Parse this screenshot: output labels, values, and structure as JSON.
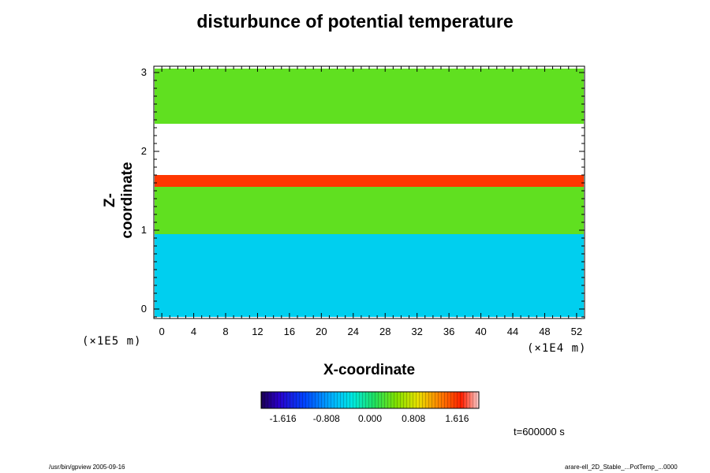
{
  "chart_data": {
    "type": "heatmap",
    "title": "disturbunce of potential temperature",
    "xlabel": "X-coordinate",
    "ylabel": "Z-coordinate",
    "x_unit": "(×1E4 m)",
    "y_unit": "(×1E5 m)",
    "xlim": [
      -1,
      53
    ],
    "ylim": [
      -0.12,
      3.08
    ],
    "x_ticks": [
      "0",
      "4",
      "8",
      "12",
      "16",
      "20",
      "24",
      "28",
      "32",
      "36",
      "40",
      "44",
      "48",
      "52"
    ],
    "y_ticks": [
      "0",
      "1",
      "2",
      "3"
    ],
    "colorbar": {
      "min": -2.02,
      "max": 2.02,
      "ticks": [
        "-1.616",
        "-0.808",
        "0.000",
        "0.808",
        "1.616"
      ],
      "colormap": "rainbow"
    },
    "bands": [
      {
        "z_range": [
          -0.1,
          0.95
        ],
        "value": -0.5
      },
      {
        "z_range": [
          0.95,
          1.55
        ],
        "value": 0.35
      },
      {
        "z_range": [
          1.55,
          1.7
        ],
        "value": 1.6
      },
      {
        "z_range": [
          1.7,
          2.35
        ],
        "value": 2.6
      },
      {
        "z_range": [
          2.35,
          3.05
        ],
        "value": 0.35
      }
    ],
    "time_label": "t=600000 s"
  },
  "footer": {
    "left": "/usr/bin/gpview 2005-09-16",
    "right": "arare-ell_2D_Stable_...PotTemp_...0000"
  },
  "colors": {
    "white_overflow": "#ffffff"
  }
}
